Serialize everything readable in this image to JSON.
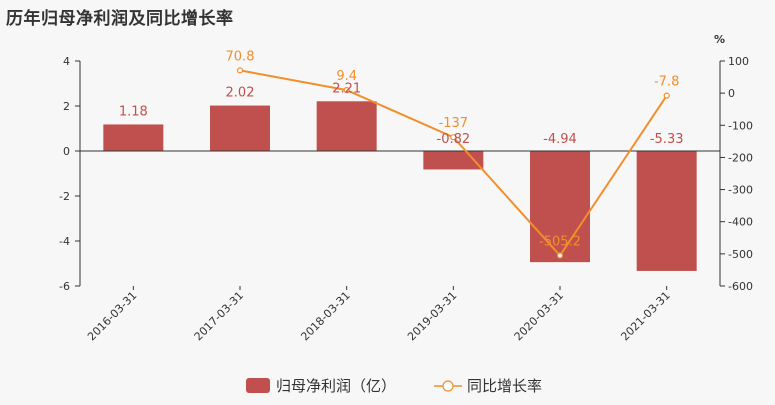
{
  "page_title": "历年归母净利润及同比增长率",
  "chart_data": {
    "type": "bar",
    "categories": [
      "2016-03-31",
      "2017-03-31",
      "2018-03-31",
      "2019-03-31",
      "2020-03-31",
      "2021-03-31"
    ],
    "series": [
      {
        "name": "归母净利润（亿）",
        "type": "bar",
        "axis": "left",
        "values": [
          1.18,
          2.02,
          2.21,
          -0.82,
          -4.94,
          -5.33
        ],
        "labels": [
          "1.18",
          "2.02",
          "2.21",
          "-0.82",
          "-4.94",
          "-5.33"
        ],
        "color": "#c0504d"
      },
      {
        "name": "同比增长率",
        "type": "line",
        "axis": "right",
        "values": [
          null,
          70.8,
          9.4,
          -137,
          -505.2,
          -7.8
        ],
        "labels": [
          "",
          "70.8",
          "9.4",
          "-137",
          "-505.2",
          "-7.8"
        ],
        "color": "#f28e2b"
      }
    ],
    "y_left": {
      "lim": [
        -6,
        4
      ],
      "ticks": [
        "4",
        "2",
        "0",
        "-2",
        "-4",
        "-6"
      ]
    },
    "y_right": {
      "lim": [
        -600,
        100
      ],
      "ticks": [
        "100",
        "0",
        "-100",
        "-200",
        "-300",
        "-400",
        "-500",
        "-600"
      ],
      "unit": "%"
    },
    "legend_position": "bottom-center"
  }
}
